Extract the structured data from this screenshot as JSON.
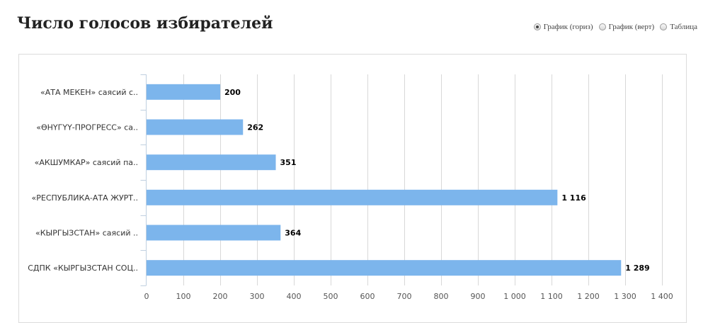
{
  "page": {
    "title": "Число голосов избирателей"
  },
  "view_switch": {
    "options": [
      {
        "label": "График (гориз)",
        "checked": true
      },
      {
        "label": "График (верт)",
        "checked": false
      },
      {
        "label": "Таблица",
        "checked": false
      }
    ]
  },
  "chart_data": {
    "type": "bar",
    "orientation": "horizontal",
    "categories": [
      "«АТА МЕКЕН» саясий с..",
      "«ӨНҮГҮҮ-ПРОГРЕСС» са..",
      "«АКШУМКАР» саясий па..",
      "«РЕСПУБЛИКА-АТА ЖУРТ..",
      "«КЫРГЫЗСТАН» саясий ..",
      "СДПК «КЫРГЫЗСТАН СОЦ.."
    ],
    "values": [
      200,
      262,
      351,
      1116,
      364,
      1289
    ],
    "value_labels": [
      "200",
      "262",
      "351",
      "1 116",
      "364",
      "1 289"
    ],
    "xlim": [
      0,
      1400
    ],
    "xticks": [
      0,
      100,
      200,
      300,
      400,
      500,
      600,
      700,
      800,
      900,
      1000,
      1100,
      1200,
      1300,
      1400
    ],
    "xtick_labels": [
      "0",
      "100",
      "200",
      "300",
      "400",
      "500",
      "600",
      "700",
      "800",
      "900",
      "1 000",
      "1 100",
      "1 200",
      "1 300",
      "1 400"
    ],
    "grid": true,
    "bar_color": "#7cb5ec",
    "grid_color": "#d8d8d8",
    "axis_color": "#c0d0e0",
    "label_color": "#333333",
    "tick_label_color": "#555555",
    "title": "",
    "xlabel": "",
    "ylabel": ""
  }
}
